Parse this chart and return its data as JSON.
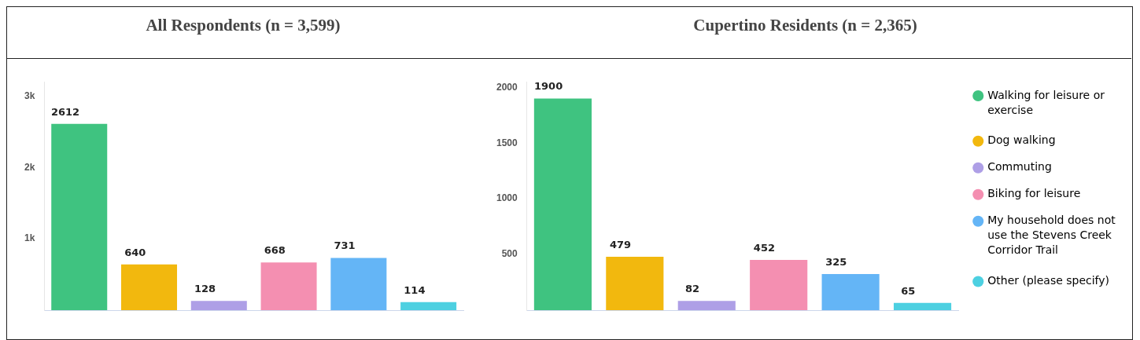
{
  "chart_data": [
    {
      "type": "bar",
      "title": "All Respondents (n = 3,599)",
      "categories": [
        null,
        null,
        null,
        null,
        null,
        null
      ],
      "values": [
        2612,
        640,
        128,
        668,
        731,
        114
      ],
      "colors": [
        "#3fc380",
        "#f2b80e",
        "#ae9fe6",
        "#f48fb1",
        "#64b5f6",
        "#4dd0e1"
      ],
      "ylim": [
        0,
        3200
      ],
      "yticks": [
        {
          "value": 1000,
          "label": "1k"
        },
        {
          "value": 2000,
          "label": "2k"
        },
        {
          "value": 3000,
          "label": "3k"
        }
      ],
      "tick_labels": "y",
      "data_labels": true
    },
    {
      "type": "bar",
      "title": "Cupertino Residents (n = 2,365)",
      "categories": [
        null,
        null,
        null,
        null,
        null,
        null
      ],
      "series": [
        {
          "name": "Walking for leisure or exercise",
          "color": "#3fc380",
          "values": [
            1900,
            null,
            null,
            null,
            null,
            null
          ]
        },
        {
          "name": "Dog walking",
          "color": "#f2b80e",
          "values": [
            null,
            479,
            null,
            null,
            null,
            null
          ]
        },
        {
          "name": "Commuting",
          "color": "#ae9fe6",
          "values": [
            null,
            null,
            82,
            null,
            null,
            null
          ]
        },
        {
          "name": "Biking for leisure",
          "color": "#f48fb1",
          "values": [
            null,
            null,
            null,
            452,
            null,
            null
          ]
        },
        {
          "name": "My household does not use the Stevens Creek Corridor Trail",
          "color": "#64b5f6",
          "values": [
            null,
            null,
            null,
            null,
            325,
            null
          ]
        },
        {
          "name": "Other (please specify)",
          "color": "#4dd0e1",
          "values": [
            null,
            null,
            null,
            null,
            null,
            65
          ]
        }
      ],
      "ylim": [
        0,
        2050
      ],
      "yticks": [
        500,
        1000,
        1500,
        2000
      ],
      "tick_labels": "y",
      "legend": "right",
      "data_labels": true
    }
  ]
}
